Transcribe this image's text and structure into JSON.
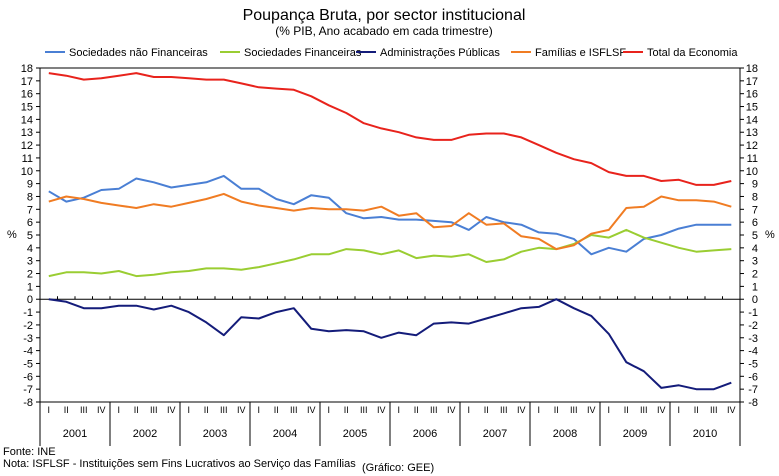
{
  "chart_data": {
    "type": "line",
    "title": "Poupança Bruta, por sector institucional",
    "subtitle": "(% PIB, Ano acabado em cada trimestre)",
    "ylabel_left": "%",
    "ylabel_right": "%",
    "ylim": [
      -8,
      18
    ],
    "yticks": [
      18,
      17,
      16,
      15,
      14,
      13,
      12,
      11,
      10,
      9,
      8,
      7,
      6,
      5,
      4,
      3,
      2,
      1,
      0,
      -1,
      -2,
      -3,
      -4,
      -5,
      -6,
      -7,
      -8
    ],
    "ytick_labels": [
      "18",
      "17",
      "16",
      "15",
      "14",
      "13",
      "12",
      "11",
      "10",
      "9",
      "8",
      "7",
      "6",
      "5",
      "4",
      "3",
      "2",
      "1",
      "0",
      "-1",
      "-2",
      "-3",
      "-4",
      "-5",
      "-6",
      "-7",
      "-8"
    ],
    "quarter_labels": [
      "I",
      "II",
      "III",
      "IV",
      "I",
      "II",
      "III",
      "IV",
      "I",
      "II",
      "III",
      "IV",
      "I",
      "II",
      "III",
      "IV",
      "I",
      "II",
      "III",
      "IV",
      "I",
      "II",
      "III",
      "IV",
      "I",
      "II",
      "III",
      "IV",
      "I",
      "II",
      "III",
      "IV",
      "I",
      "II",
      "III",
      "IV",
      "I",
      "II",
      "III",
      "IV"
    ],
    "years": [
      "2001",
      "2002",
      "2003",
      "2004",
      "2005",
      "2006",
      "2007",
      "2008",
      "2009",
      "2010"
    ],
    "series": [
      {
        "name": "Sociedades não Financeiras",
        "color": "#4a7fd4",
        "values": [
          8.4,
          7.6,
          7.9,
          8.5,
          8.6,
          9.4,
          9.1,
          8.7,
          8.9,
          9.1,
          9.6,
          8.6,
          8.6,
          7.8,
          7.4,
          8.1,
          7.9,
          6.7,
          6.3,
          6.4,
          6.2,
          6.2,
          6.1,
          6.0,
          5.4,
          6.4,
          6.0,
          5.8,
          5.2,
          5.1,
          4.7,
          3.5,
          4.0,
          3.7,
          4.7,
          5.0,
          5.5,
          5.8,
          5.8,
          5.8
        ]
      },
      {
        "name": "Sociedades Financeiras",
        "color": "#9acd32",
        "values": [
          1.8,
          2.1,
          2.1,
          2.0,
          2.2,
          1.8,
          1.9,
          2.1,
          2.2,
          2.4,
          2.4,
          2.3,
          2.5,
          2.8,
          3.1,
          3.5,
          3.5,
          3.9,
          3.8,
          3.5,
          3.8,
          3.2,
          3.4,
          3.3,
          3.5,
          2.9,
          3.1,
          3.7,
          4.0,
          3.9,
          4.3,
          5.0,
          4.8,
          5.4,
          4.8,
          4.4,
          4.0,
          3.7,
          3.8,
          3.9
        ]
      },
      {
        "name": "Administrações Públicas",
        "color": "#141c7a",
        "values": [
          0.0,
          -0.2,
          -0.7,
          -0.7,
          -0.5,
          -0.5,
          -0.8,
          -0.5,
          -1.0,
          -1.8,
          -2.8,
          -1.4,
          -1.5,
          -1.0,
          -0.7,
          -2.3,
          -2.5,
          -2.4,
          -2.5,
          -3.0,
          -2.6,
          -2.8,
          -1.9,
          -1.8,
          -1.9,
          -1.5,
          -1.1,
          -0.7,
          -0.6,
          0.0,
          -0.7,
          -1.3,
          -2.7,
          -4.9,
          -5.6,
          -6.9,
          -6.7,
          -7.0,
          -7.0,
          -6.5
        ]
      },
      {
        "name": "Famílias e ISFLSF",
        "color": "#f07c23",
        "values": [
          7.6,
          8.0,
          7.8,
          7.5,
          7.3,
          7.1,
          7.4,
          7.2,
          7.5,
          7.8,
          8.2,
          7.6,
          7.3,
          7.1,
          6.9,
          7.1,
          7.0,
          7.0,
          6.9,
          7.2,
          6.5,
          6.7,
          5.6,
          5.7,
          6.7,
          5.8,
          5.9,
          4.9,
          4.7,
          3.9,
          4.2,
          5.1,
          5.4,
          7.1,
          7.2,
          8.0,
          7.7,
          7.7,
          7.6,
          7.2
        ]
      },
      {
        "name": "Total da Economia",
        "color": "#e8231c",
        "values": [
          17.6,
          17.4,
          17.1,
          17.2,
          17.4,
          17.6,
          17.3,
          17.3,
          17.2,
          17.1,
          17.1,
          16.8,
          16.5,
          16.4,
          16.3,
          15.8,
          15.1,
          14.5,
          13.7,
          13.3,
          13.0,
          12.6,
          12.4,
          12.4,
          12.8,
          12.9,
          12.9,
          12.6,
          12.0,
          11.4,
          10.9,
          10.6,
          9.9,
          9.6,
          9.6,
          9.2,
          9.3,
          8.9,
          8.9,
          9.2
        ]
      }
    ]
  },
  "footer": {
    "source": "Fonte: INE",
    "note": "Nota: ISFLSF - Instituições sem Fins Lucrativos ao Serviço das Famílias",
    "credit": "(Gráfico: GEE)"
  }
}
